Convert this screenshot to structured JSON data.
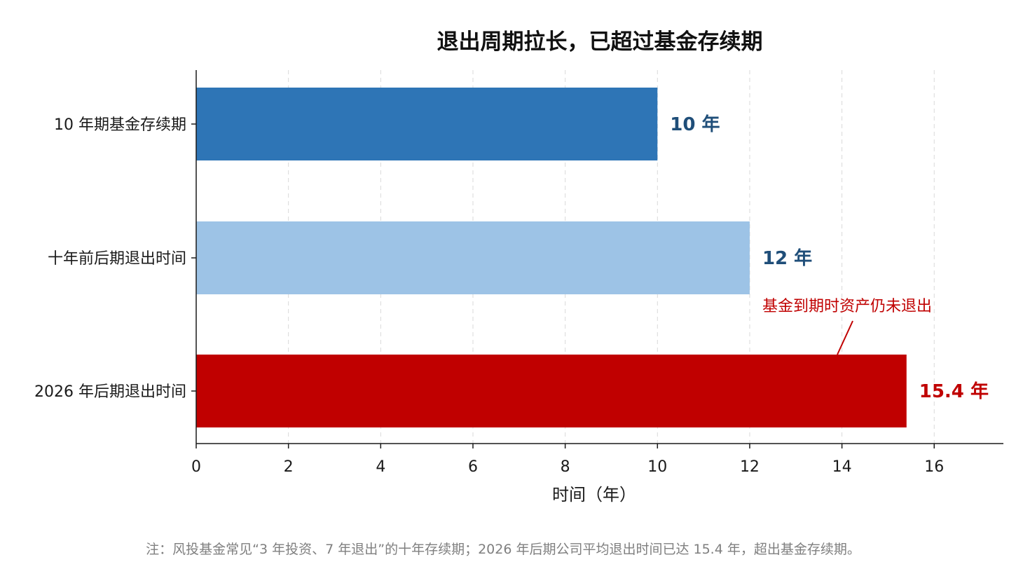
{
  "chart_data": {
    "type": "bar",
    "orientation": "horizontal",
    "title": "退出周期拉长，已超过基金存续期",
    "categories": [
      "10 年期基金存续期",
      "十年前后期退出时间",
      "2026 年后期退出时间"
    ],
    "values": [
      10,
      12,
      15.4
    ],
    "value_labels": [
      "10 年",
      "12 年",
      "15.4 年"
    ],
    "bar_colors": [
      "#2e75b6",
      "#9dc3e6",
      "#c00000"
    ],
    "value_label_colors": [
      "#1f4e79",
      "#1f4e79",
      "#c00000"
    ],
    "xlabel": "时间（年）",
    "ylabel": "",
    "xlim": [
      0,
      17.5
    ],
    "x_ticks": [
      0,
      2,
      4,
      6,
      8,
      10,
      12,
      14,
      16
    ],
    "grid": "vertical dashed",
    "annotation": {
      "text": "基金到期时资产仍未退出",
      "target_category": "2026 年后期退出时间",
      "target_x": 13.9,
      "color": "#c00000"
    }
  },
  "footnote": "注：风投基金常见“3 年投资、7 年退出”的十年存续期；2026 年后期公司平均退出时间已达 15.4 年，超出基金存续期。"
}
